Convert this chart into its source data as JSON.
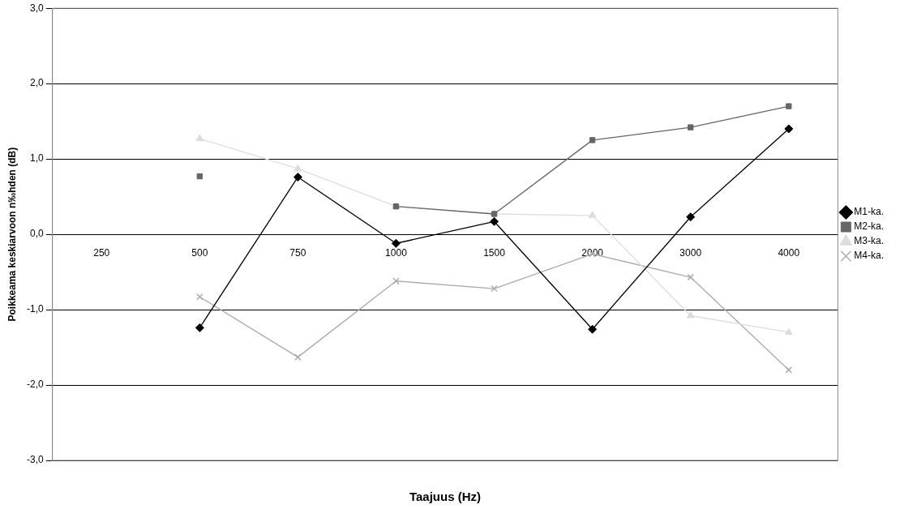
{
  "chart_data": {
    "type": "line",
    "xlabel": "Taajuus (Hz)",
    "ylabel": "Poikkeama keskiarvoon n‰hden (dB)",
    "categories": [
      "250",
      "500",
      "750",
      "1000",
      "1500",
      "2000",
      "3000",
      "4000"
    ],
    "series": [
      {
        "name": "M1-ka.",
        "color": "#000000",
        "marker": "diamond",
        "values": [
          null,
          -1.24,
          0.76,
          -0.12,
          0.17,
          -1.26,
          0.23,
          1.4
        ]
      },
      {
        "name": "M2-ka.",
        "color": "#666666",
        "marker": "square",
        "values": [
          null,
          0.77,
          null,
          0.37,
          0.27,
          1.25,
          1.42,
          1.7
        ]
      },
      {
        "name": "M3-ka.",
        "color": "#dddddd",
        "marker": "triangle",
        "values": [
          null,
          1.27,
          0.87,
          0.37,
          0.27,
          0.25,
          -1.08,
          -1.3
        ]
      },
      {
        "name": "M4-ka.",
        "color": "#aaaaaa",
        "marker": "cross",
        "values": [
          null,
          -0.83,
          -1.63,
          -0.62,
          -0.72,
          -0.26,
          -0.57,
          -1.8
        ]
      }
    ],
    "ylim": [
      -3,
      3
    ],
    "yticks": [
      {
        "value": -3,
        "label": "-3,0"
      },
      {
        "value": -2,
        "label": "-2,0"
      },
      {
        "value": -1,
        "label": "-1,0"
      },
      {
        "value": 0,
        "label": "0,0"
      },
      {
        "value": 1,
        "label": "1,0"
      },
      {
        "value": 2,
        "label": "2,0"
      },
      {
        "value": 3,
        "label": "3,0"
      }
    ],
    "grid": "y",
    "legend": "right",
    "line_style": "solid"
  }
}
